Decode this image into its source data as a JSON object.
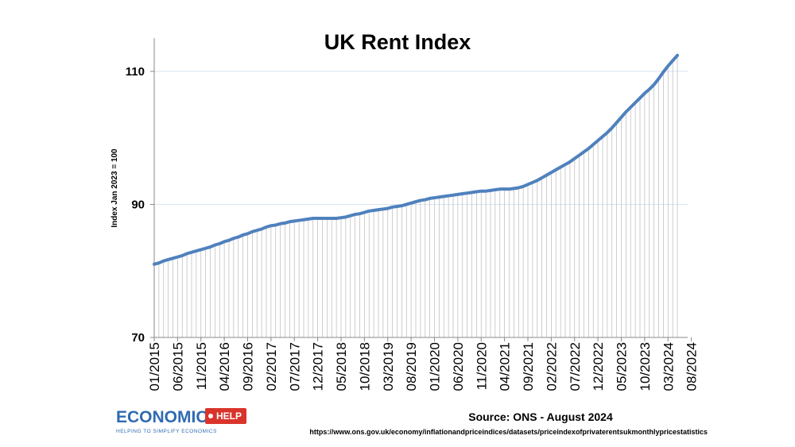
{
  "chart_data": {
    "type": "line",
    "title": "UK Rent Index",
    "xlabel": "",
    "ylabel": "Index Jan 2023 = 100",
    "ylim": [
      70,
      115
    ],
    "yticks": [
      70,
      90,
      110
    ],
    "x_start": "01/2015",
    "x_tick_labels": [
      "01/2015",
      "06/2015",
      "11/2015",
      "04/2016",
      "09/2016",
      "02/2017",
      "07/2017",
      "12/2017",
      "05/2018",
      "10/2018",
      "03/2019",
      "08/2019",
      "01/2020",
      "06/2020",
      "11/2020",
      "04/2021",
      "09/2021",
      "02/2022",
      "07/2022",
      "12/2022",
      "05/2023",
      "10/2023",
      "03/2024",
      "08/2024"
    ],
    "drop_lines": true,
    "color": "#4f81bd",
    "series": [
      {
        "name": "UK Rent Index",
        "values": [
          81.0,
          81.2,
          81.5,
          81.7,
          81.9,
          82.1,
          82.3,
          82.6,
          82.8,
          83.0,
          83.2,
          83.4,
          83.6,
          83.9,
          84.1,
          84.4,
          84.6,
          84.9,
          85.1,
          85.4,
          85.6,
          85.9,
          86.1,
          86.3,
          86.6,
          86.8,
          86.9,
          87.1,
          87.2,
          87.4,
          87.5,
          87.6,
          87.7,
          87.8,
          87.9,
          87.9,
          87.9,
          87.9,
          87.9,
          87.9,
          88.0,
          88.1,
          88.3,
          88.5,
          88.6,
          88.8,
          89.0,
          89.1,
          89.2,
          89.3,
          89.4,
          89.6,
          89.7,
          89.8,
          90.0,
          90.2,
          90.4,
          90.6,
          90.7,
          90.9,
          91.0,
          91.1,
          91.2,
          91.3,
          91.4,
          91.5,
          91.6,
          91.7,
          91.8,
          91.9,
          92.0,
          92.0,
          92.1,
          92.2,
          92.3,
          92.3,
          92.3,
          92.4,
          92.5,
          92.7,
          93.0,
          93.3,
          93.6,
          94.0,
          94.4,
          94.8,
          95.2,
          95.6,
          96.0,
          96.4,
          96.9,
          97.4,
          97.9,
          98.4,
          99.0,
          99.6,
          100.2,
          100.8,
          101.5,
          102.3,
          103.1,
          103.9,
          104.6,
          105.3,
          106.0,
          106.7,
          107.3,
          108.0,
          108.9,
          109.9,
          110.8,
          111.6,
          112.4
        ]
      }
    ]
  },
  "source": {
    "text": "Source: ONS - August 2024",
    "url": "https://www.ons.gov.uk/economy/inflationandpriceindices/datasets/priceindexofprivaterentsukmonthlypricestatistics"
  },
  "logo": {
    "name": "ECONOMICS",
    "badge": "HELP",
    "tagline": "HELPING TO SIMPLIFY ECONOMICS"
  }
}
